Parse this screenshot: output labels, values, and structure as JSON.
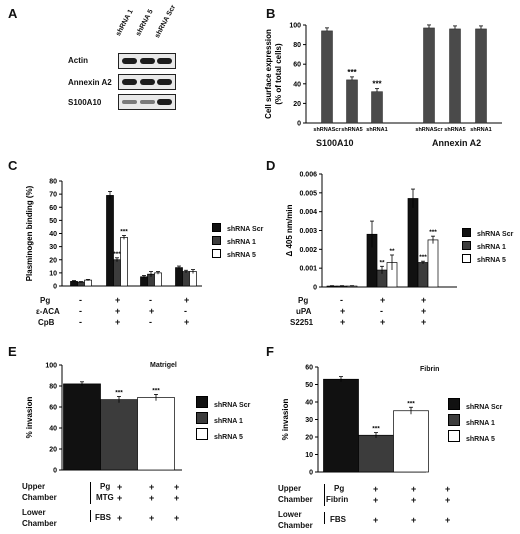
{
  "panels": {
    "A": {
      "letter": "A",
      "lanes": [
        "shRNA 1",
        "shRNA 5",
        "shRNA Scr"
      ],
      "rows": [
        "Actin",
        "Annexin A2",
        "S100A10"
      ]
    },
    "B": {
      "letter": "B",
      "group_labels": [
        "S100A10",
        "Annexin A2"
      ]
    },
    "C": {
      "letter": "C",
      "treat_rows": [
        "Pg",
        "ε-ACA",
        "CpB"
      ],
      "treat_values": [
        [
          "-",
          "-",
          "-"
        ],
        [
          "+",
          "+",
          "+"
        ],
        [
          "-",
          "+",
          "-"
        ],
        [
          "+",
          "-",
          "+"
        ]
      ]
    },
    "D": {
      "letter": "D",
      "treat_rows": [
        "Pg",
        "uPA",
        "S2251"
      ],
      "treat_values": [
        [
          "-",
          "+",
          "+"
        ],
        [
          "+",
          "-",
          "+"
        ],
        [
          "+",
          "+",
          "+"
        ]
      ]
    },
    "E": {
      "letter": "E",
      "note": "Matrigel",
      "cond_upper": [
        "Upper",
        "Chamber"
      ],
      "cond_upper_val": [
        "Pg",
        "MTG"
      ],
      "cond_lower": [
        "Lower",
        "Chamber"
      ],
      "cond_lower_val": "FBS"
    },
    "F": {
      "letter": "F",
      "note": "Fibrin",
      "cond_upper": [
        "Upper",
        "Chamber"
      ],
      "cond_upper_val": [
        "Pg",
        "Fibrin"
      ],
      "cond_lower": [
        "Lower",
        "Chamber"
      ],
      "cond_lower_val": "FBS"
    }
  },
  "legend": {
    "items": [
      "shRNA Scr",
      "shRNA 1",
      "shRNA 5"
    ],
    "colors": [
      "#111111",
      "#3c3c3c",
      "#ffffff"
    ]
  },
  "chart_data": [
    {
      "panel": "B",
      "type": "bar",
      "ylabel": "Cell surface expression (% of total cells)",
      "ylim": [
        0,
        100
      ],
      "yticks": [
        0,
        20,
        40,
        60,
        80,
        100
      ],
      "categories": [
        "shRNAScr",
        "shRNA5",
        "shRNA1",
        "shRNAScr",
        "shRNA5",
        "shRNA1"
      ],
      "values": [
        94,
        44,
        32,
        97,
        96,
        96
      ],
      "annotations": [
        "",
        "***",
        "***",
        "",
        "",
        ""
      ]
    },
    {
      "panel": "C",
      "type": "bar",
      "ylabel": "Plasminogen binding (%)",
      "ylim": [
        0,
        80
      ],
      "yticks": [
        0,
        10,
        20,
        30,
        40,
        50,
        60,
        70,
        80
      ],
      "series": [
        {
          "name": "shRNA Scr",
          "values": [
            3.5,
            69,
            7,
            14
          ]
        },
        {
          "name": "shRNA 1",
          "values": [
            3,
            20,
            9,
            11
          ]
        },
        {
          "name": "shRNA 5",
          "values": [
            4.5,
            37,
            10,
            11
          ]
        }
      ],
      "annotations": [
        [
          "",
          "",
          ""
        ],
        [
          "",
          "***",
          "***"
        ],
        [
          "",
          "",
          ""
        ],
        [
          "",
          "",
          ""
        ]
      ]
    },
    {
      "panel": "D",
      "type": "bar",
      "ylabel": "Δ 405 nm/min",
      "ylim": [
        0,
        0.006
      ],
      "yticks": [
        "0",
        "0.001",
        "0.002",
        "0.003",
        "0.004",
        "0.005",
        "0.006"
      ],
      "series": [
        {
          "name": "shRNA Scr",
          "values": [
            5e-05,
            0.0028,
            0.0047
          ]
        },
        {
          "name": "shRNA 1",
          "values": [
            5e-05,
            0.0009,
            0.0013
          ]
        },
        {
          "name": "shRNA 5",
          "values": [
            5e-05,
            0.0013,
            0.0025
          ]
        }
      ],
      "annotations": [
        [
          "",
          "",
          ""
        ],
        [
          "",
          "**",
          "**"
        ],
        [
          "",
          "***",
          "***"
        ]
      ]
    },
    {
      "panel": "E",
      "type": "bar",
      "ylabel": "% invasion",
      "ylim": [
        0,
        100
      ],
      "yticks": [
        0,
        20,
        40,
        60,
        80,
        100
      ],
      "series": [
        {
          "name": "shRNA Scr",
          "values": [
            82
          ]
        },
        {
          "name": "shRNA 1",
          "values": [
            67
          ]
        },
        {
          "name": "shRNA 5",
          "values": [
            69
          ]
        }
      ],
      "annotations": [
        "",
        "***",
        "***"
      ]
    },
    {
      "panel": "F",
      "type": "bar",
      "ylabel": "% invasion",
      "ylim": [
        0,
        60
      ],
      "yticks": [
        0,
        10,
        20,
        30,
        40,
        50,
        60
      ],
      "series": [
        {
          "name": "shRNA Scr",
          "values": [
            53
          ]
        },
        {
          "name": "shRNA 1",
          "values": [
            21
          ]
        },
        {
          "name": "shRNA 5",
          "values": [
            35
          ]
        }
      ],
      "annotations": [
        "",
        "***",
        "***"
      ]
    }
  ]
}
